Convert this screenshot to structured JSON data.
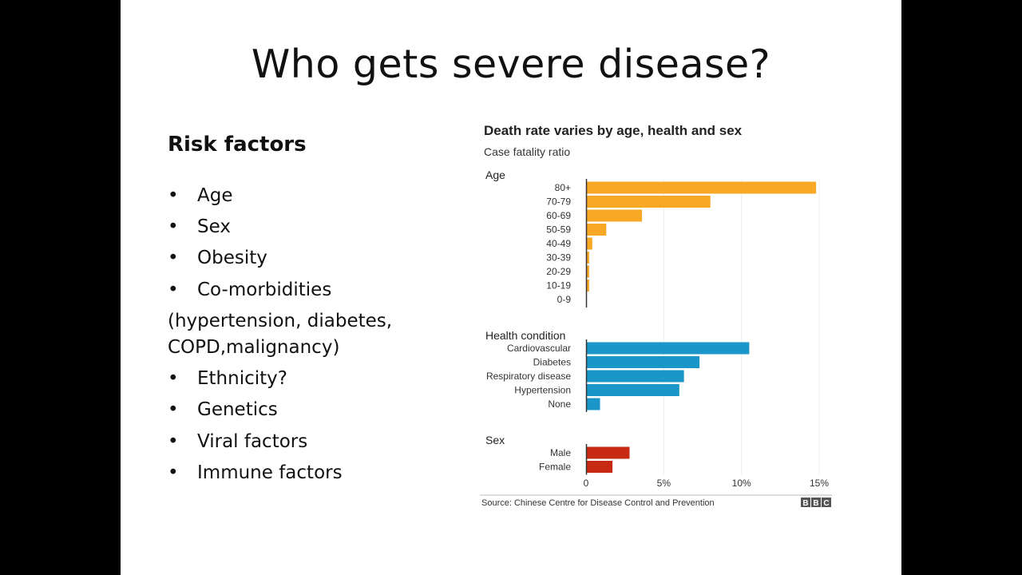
{
  "slide": {
    "title": "Who gets severe disease?",
    "heading": "Risk factors",
    "bullets_top": [
      "Age",
      "Sex",
      "Obesity",
      "Co-morbidities"
    ],
    "note_lines": [
      "(hypertension, diabetes,",
      "COPD,malignancy)"
    ],
    "bullets_bottom": [
      "Ethnicity?",
      "Genetics",
      "Viral factors",
      "Immune factors"
    ],
    "bullet_glyph": "•"
  },
  "chart_data": {
    "type": "bar",
    "title": "Death rate varies by age, health and sex",
    "subtitle": "Case fatality ratio",
    "source": "Source: Chinese Centre for Disease Control and Prevention",
    "logo": "BBC",
    "xlim": [
      0,
      15
    ],
    "xticks": [
      "0",
      "5%",
      "10%",
      "15%"
    ],
    "xtick_values": [
      0,
      5,
      10,
      15
    ],
    "grid": true,
    "groups": [
      {
        "name": "Age",
        "color": "#f9a825",
        "categories": [
          "80+",
          "70-79",
          "60-69",
          "50-59",
          "40-49",
          "30-39",
          "20-29",
          "10-19",
          "0-9"
        ],
        "values": [
          14.8,
          8.0,
          3.6,
          1.3,
          0.4,
          0.2,
          0.2,
          0.2,
          0.0
        ]
      },
      {
        "name": "Health condition",
        "color": "#1b96c8",
        "categories": [
          "Cardiovascular",
          "Diabetes",
          "Respiratory disease",
          "Hypertension",
          "None"
        ],
        "values": [
          10.5,
          7.3,
          6.3,
          6.0,
          0.9
        ]
      },
      {
        "name": "Sex",
        "color": "#c62a12",
        "categories": [
          "Male",
          "Female"
        ],
        "values": [
          2.8,
          1.7
        ]
      }
    ]
  }
}
